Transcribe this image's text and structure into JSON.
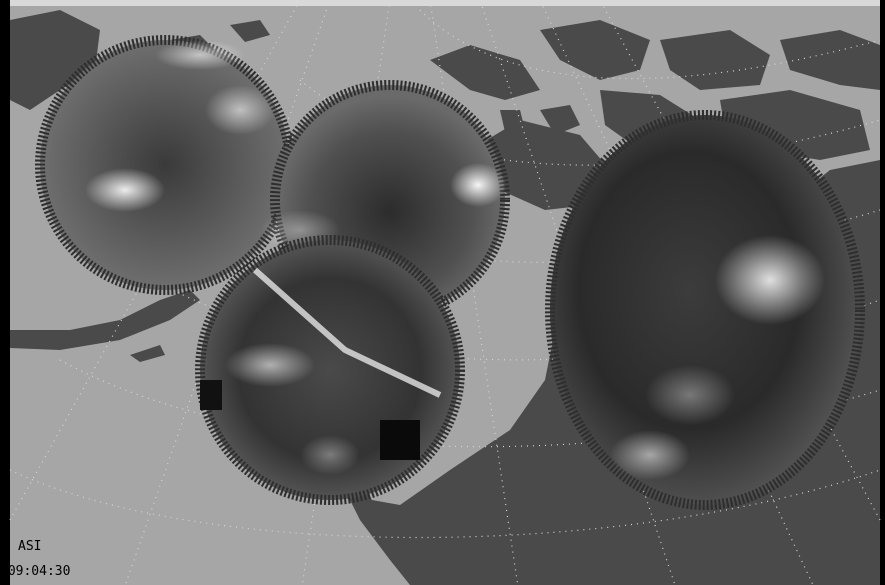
{
  "overlay": {
    "instrument": "ASI",
    "time": "/09:04:30"
  },
  "colors": {
    "frame_top": "#d9d9d9",
    "frame_left": "#000000",
    "frame_right": "#000000",
    "ocean": "#a6a6a6",
    "land": "#4a4a4a",
    "graticule": "#d6d6d6",
    "aurora_dark": "#151515",
    "aurora_mid": "#6a6a6a",
    "aurora_bright": "#ffffff"
  }
}
